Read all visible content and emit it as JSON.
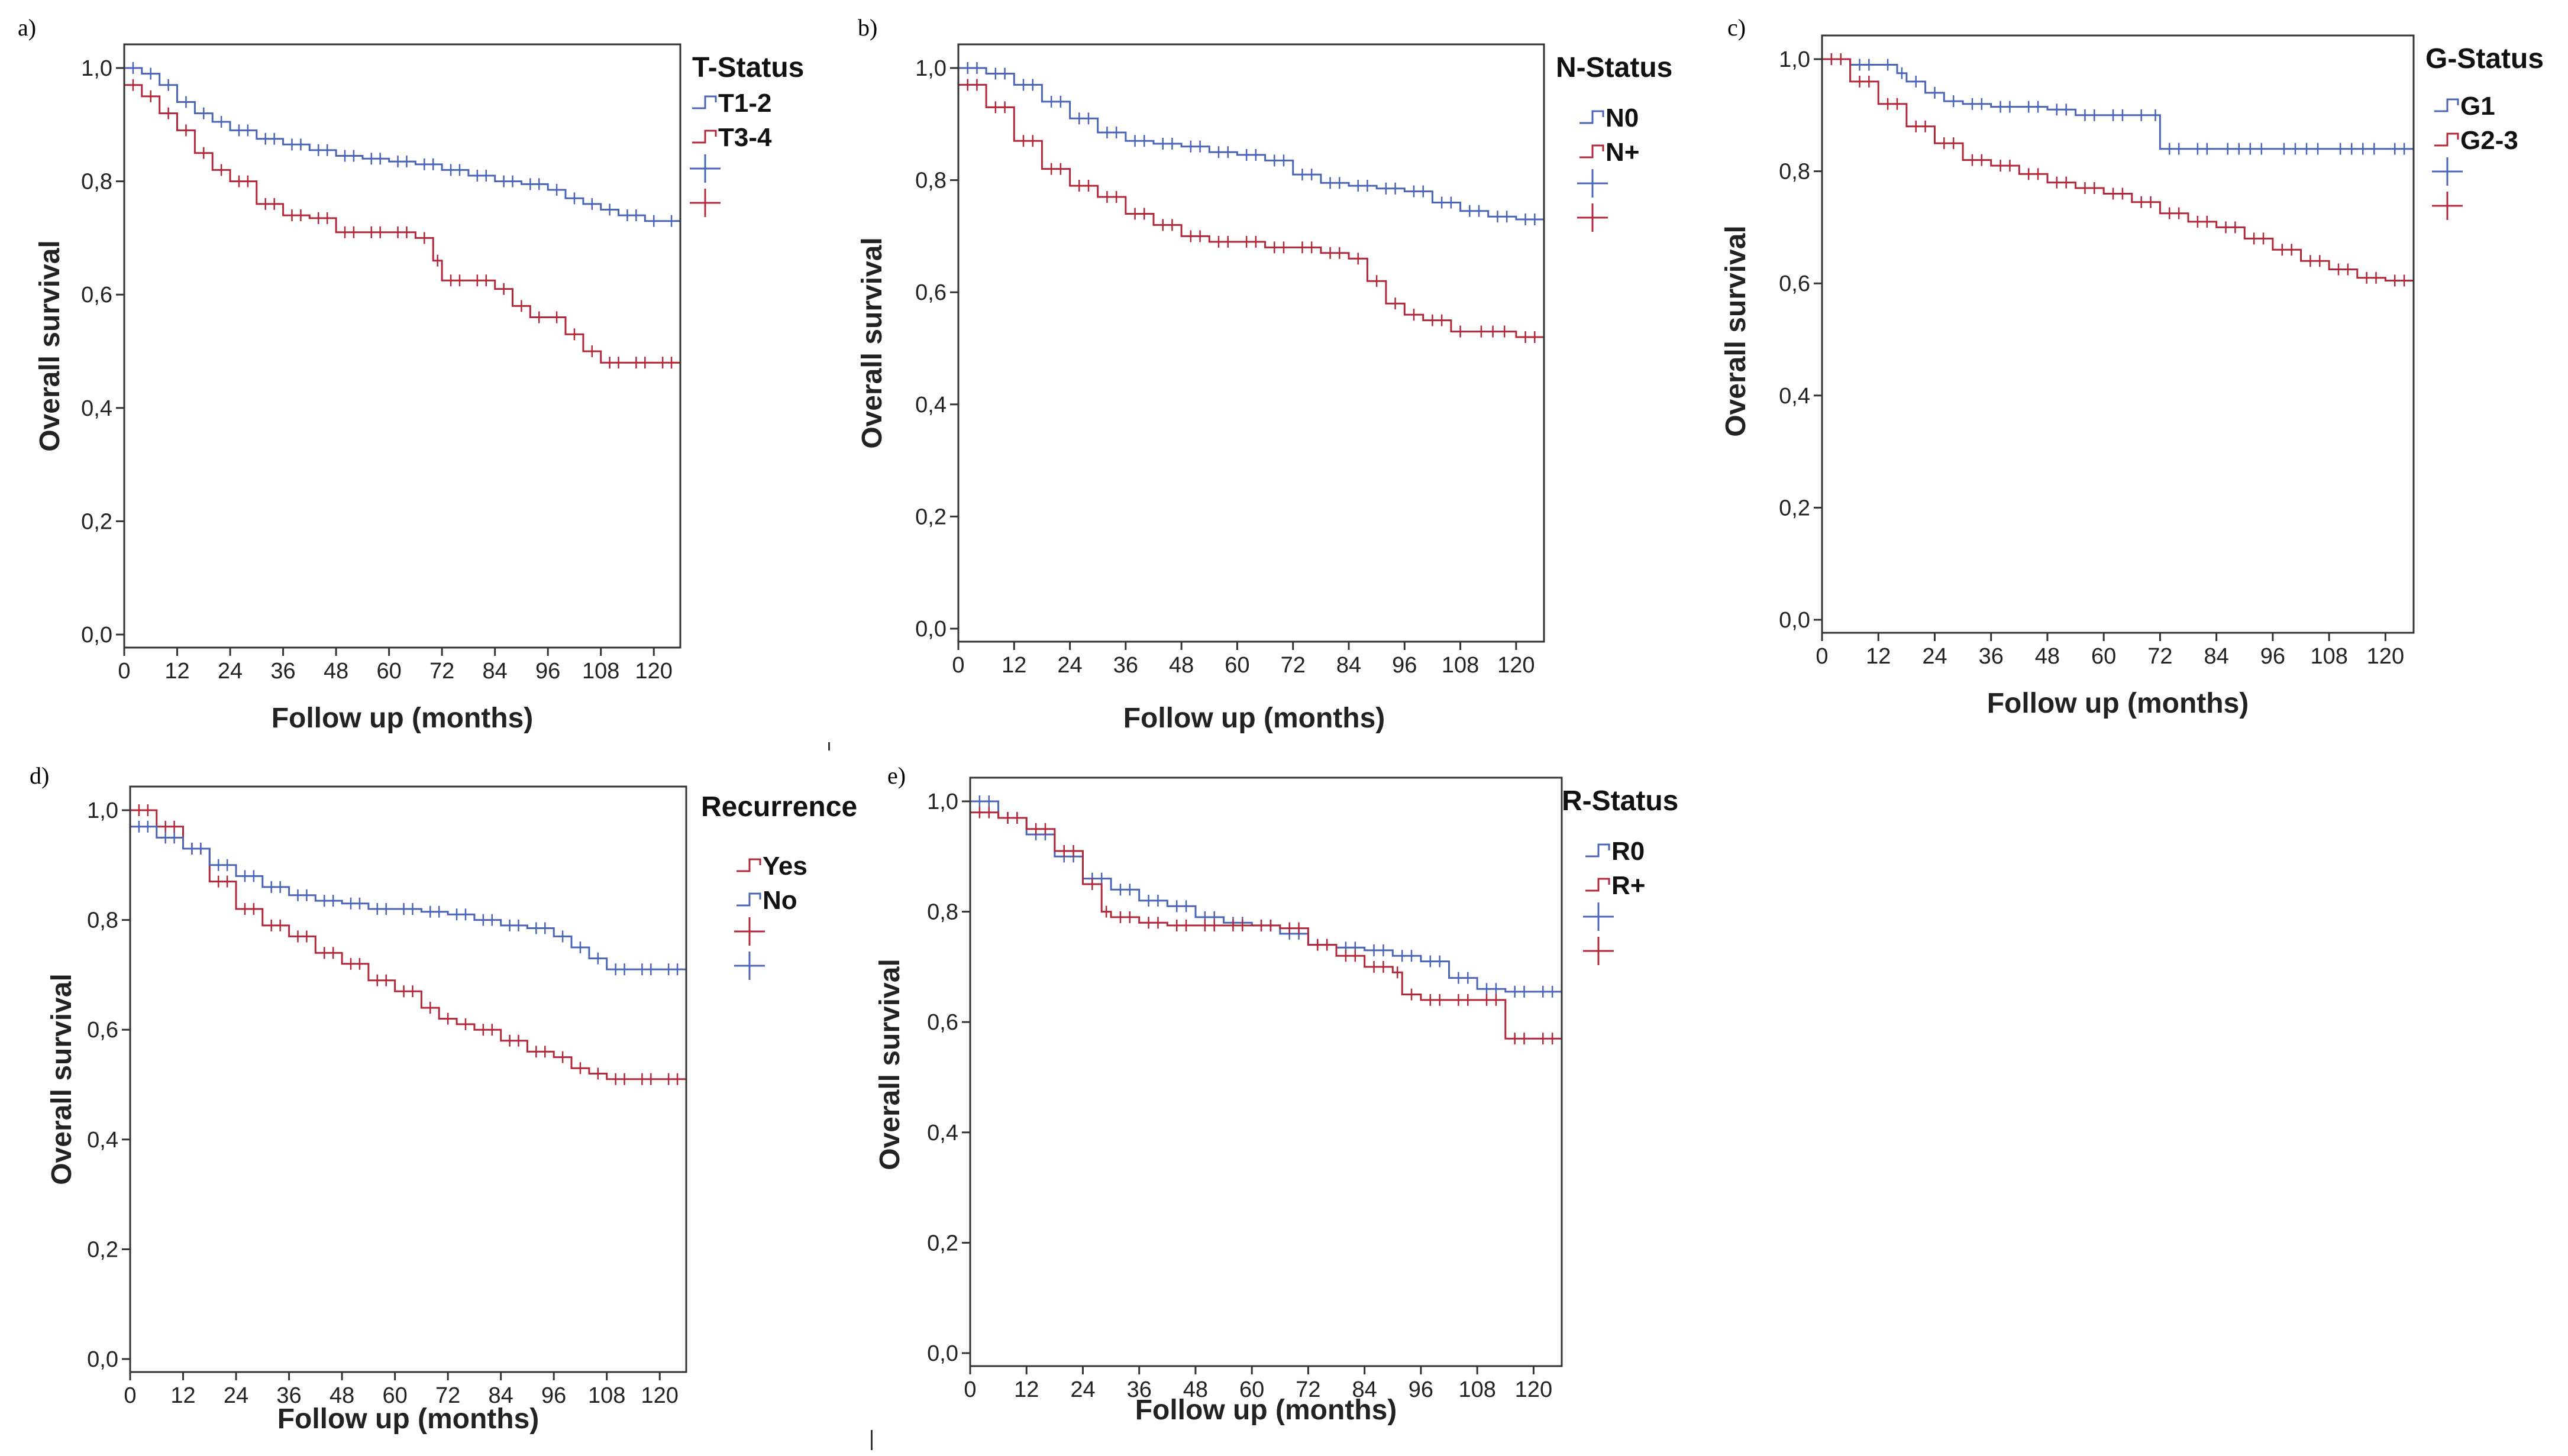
{
  "chart_data": [
    {
      "panel": "a)",
      "type": "line",
      "xlabel": "Follow up (months)",
      "ylabel": "Overall survival",
      "xticks": [
        "0",
        "12",
        "24",
        "36",
        "48",
        "60",
        "72",
        "84",
        "96",
        "108",
        "120"
      ],
      "yticks": [
        "0,0",
        "0,2",
        "0,4",
        "0,6",
        "0,8",
        "1,0"
      ],
      "xlim": [
        0,
        126
      ],
      "ylim": [
        0,
        1
      ],
      "legend_title": "T-Status",
      "series": [
        {
          "name": "T1-2",
          "color": "#4a64b8",
          "x": [
            0,
            4,
            8,
            12,
            16,
            20,
            24,
            30,
            36,
            42,
            48,
            54,
            60,
            66,
            72,
            78,
            84,
            90,
            96,
            100,
            104,
            108,
            112,
            118,
            122,
            126
          ],
          "y": [
            1.0,
            0.99,
            0.97,
            0.94,
            0.92,
            0.905,
            0.89,
            0.875,
            0.865,
            0.855,
            0.845,
            0.84,
            0.835,
            0.83,
            0.82,
            0.81,
            0.8,
            0.795,
            0.785,
            0.77,
            0.76,
            0.75,
            0.74,
            0.73,
            0.73,
            0.73
          ]
        },
        {
          "name": "T3-4",
          "color": "#b0283a",
          "x": [
            0,
            4,
            8,
            12,
            16,
            20,
            24,
            30,
            36,
            42,
            48,
            54,
            60,
            66,
            70,
            72,
            78,
            84,
            88,
            92,
            96,
            100,
            104,
            108,
            114,
            120,
            126
          ],
          "y": [
            0.97,
            0.95,
            0.92,
            0.89,
            0.85,
            0.82,
            0.8,
            0.76,
            0.74,
            0.735,
            0.71,
            0.71,
            0.71,
            0.7,
            0.66,
            0.625,
            0.625,
            0.61,
            0.58,
            0.56,
            0.56,
            0.53,
            0.5,
            0.48,
            0.48,
            0.48,
            0.48
          ]
        }
      ]
    },
    {
      "panel": "b)",
      "type": "line",
      "xlabel": "Follow up (months)",
      "ylabel": "Overall survival",
      "xticks": [
        "0",
        "12",
        "24",
        "36",
        "48",
        "60",
        "72",
        "84",
        "96",
        "108",
        "120"
      ],
      "yticks": [
        "0,0",
        "0,2",
        "0,4",
        "0,6",
        "0,8",
        "1,0"
      ],
      "xlim": [
        0,
        126
      ],
      "ylim": [
        0,
        1
      ],
      "legend_title": "N-Status",
      "series": [
        {
          "name": "N0",
          "color": "#4a64b8",
          "x": [
            0,
            6,
            12,
            18,
            24,
            30,
            36,
            42,
            48,
            54,
            60,
            66,
            72,
            78,
            84,
            90,
            96,
            102,
            108,
            114,
            120,
            126
          ],
          "y": [
            1.0,
            0.99,
            0.97,
            0.94,
            0.91,
            0.885,
            0.87,
            0.865,
            0.86,
            0.85,
            0.845,
            0.835,
            0.81,
            0.795,
            0.79,
            0.785,
            0.78,
            0.76,
            0.745,
            0.735,
            0.73,
            0.73
          ]
        },
        {
          "name": "N+",
          "color": "#b0283a",
          "x": [
            0,
            6,
            12,
            18,
            24,
            30,
            36,
            42,
            48,
            54,
            60,
            66,
            72,
            78,
            84,
            88,
            92,
            96,
            100,
            106,
            110,
            120,
            126
          ],
          "y": [
            0.97,
            0.93,
            0.87,
            0.82,
            0.79,
            0.77,
            0.74,
            0.72,
            0.7,
            0.69,
            0.69,
            0.68,
            0.68,
            0.67,
            0.66,
            0.62,
            0.58,
            0.56,
            0.55,
            0.53,
            0.53,
            0.52,
            0.52
          ]
        }
      ]
    },
    {
      "panel": "c)",
      "type": "line",
      "xlabel": "Follow up  (months)",
      "ylabel": "Overall survival",
      "xticks": [
        "0",
        "12",
        "24",
        "36",
        "48",
        "60",
        "72",
        "84",
        "96",
        "108",
        "120"
      ],
      "yticks": [
        "0,0",
        "0,2",
        "0,4",
        "0,6",
        "0,8",
        "1,0"
      ],
      "xlim": [
        0,
        126
      ],
      "ylim": [
        0,
        1
      ],
      "legend_title": "G-Status",
      "series": [
        {
          "name": "G1",
          "color": "#4a64b8",
          "x": [
            0,
            6,
            12,
            16,
            18,
            22,
            26,
            30,
            36,
            42,
            48,
            54,
            60,
            66,
            70,
            72,
            78,
            84,
            96,
            108,
            120,
            126
          ],
          "y": [
            1.0,
            0.99,
            0.99,
            0.975,
            0.96,
            0.94,
            0.925,
            0.92,
            0.915,
            0.915,
            0.91,
            0.9,
            0.9,
            0.9,
            0.9,
            0.84,
            0.84,
            0.84,
            0.84,
            0.84,
            0.84,
            0.84
          ]
        },
        {
          "name": "G2-3",
          "color": "#b0283a",
          "x": [
            0,
            6,
            12,
            18,
            24,
            30,
            36,
            42,
            48,
            54,
            60,
            66,
            72,
            78,
            84,
            90,
            96,
            102,
            108,
            114,
            120,
            126
          ],
          "y": [
            1.0,
            0.96,
            0.92,
            0.88,
            0.85,
            0.82,
            0.81,
            0.795,
            0.78,
            0.77,
            0.76,
            0.745,
            0.725,
            0.71,
            0.7,
            0.68,
            0.66,
            0.64,
            0.625,
            0.61,
            0.605,
            0.605
          ]
        }
      ]
    },
    {
      "panel": "d)",
      "type": "line",
      "xlabel": "Follow up (months)",
      "ylabel": "Overall survival",
      "xticks": [
        "0",
        "12",
        "24",
        "36",
        "48",
        "60",
        "72",
        "84",
        "96",
        "108",
        "120"
      ],
      "yticks": [
        "0,0",
        "0,2",
        "0,4",
        "0,6",
        "0,8",
        "1,0"
      ],
      "xlim": [
        0,
        126
      ],
      "ylim": [
        0,
        1
      ],
      "legend_title": "Recurrence",
      "series": [
        {
          "name": "Yes",
          "color": "#b0283a",
          "x": [
            0,
            6,
            12,
            18,
            24,
            30,
            36,
            42,
            48,
            54,
            60,
            66,
            70,
            74,
            78,
            84,
            90,
            96,
            100,
            104,
            108,
            114,
            120,
            126
          ],
          "y": [
            1.0,
            0.97,
            0.93,
            0.87,
            0.82,
            0.79,
            0.77,
            0.74,
            0.72,
            0.69,
            0.67,
            0.64,
            0.62,
            0.61,
            0.6,
            0.58,
            0.56,
            0.55,
            0.53,
            0.52,
            0.51,
            0.51,
            0.51,
            0.51
          ]
        },
        {
          "name": "No",
          "color": "#4a64b8",
          "x": [
            0,
            6,
            12,
            18,
            24,
            30,
            36,
            42,
            48,
            54,
            60,
            66,
            72,
            78,
            84,
            90,
            96,
            100,
            104,
            108,
            114,
            120,
            126
          ],
          "y": [
            0.97,
            0.95,
            0.93,
            0.9,
            0.88,
            0.86,
            0.845,
            0.835,
            0.83,
            0.82,
            0.82,
            0.815,
            0.81,
            0.8,
            0.79,
            0.785,
            0.77,
            0.75,
            0.73,
            0.71,
            0.71,
            0.71,
            0.71
          ]
        }
      ]
    },
    {
      "panel": "e)",
      "type": "line",
      "xlabel": "Follow up (months)",
      "ylabel": "Overall survival",
      "xticks": [
        "0",
        "12",
        "24",
        "36",
        "48",
        "60",
        "72",
        "84",
        "96",
        "108",
        "120"
      ],
      "yticks": [
        "0,0",
        "0,2",
        "0,4",
        "0,6",
        "0,8",
        "1,0"
      ],
      "xlim": [
        0,
        126
      ],
      "ylim": [
        0,
        1
      ],
      "legend_title": "R-Status",
      "series": [
        {
          "name": "R0",
          "color": "#4a64b8",
          "x": [
            0,
            6,
            12,
            18,
            24,
            30,
            36,
            42,
            48,
            54,
            60,
            66,
            72,
            78,
            84,
            90,
            96,
            102,
            108,
            114,
            120,
            126
          ],
          "y": [
            1.0,
            0.97,
            0.94,
            0.9,
            0.86,
            0.84,
            0.82,
            0.81,
            0.79,
            0.78,
            0.775,
            0.76,
            0.74,
            0.735,
            0.73,
            0.72,
            0.71,
            0.68,
            0.66,
            0.655,
            0.655,
            0.655
          ]
        },
        {
          "name": "R+",
          "color": "#b0283a",
          "x": [
            0,
            6,
            12,
            18,
            24,
            28,
            30,
            36,
            42,
            48,
            54,
            60,
            66,
            72,
            78,
            84,
            90,
            92,
            96,
            102,
            108,
            114,
            120,
            126
          ],
          "y": [
            0.98,
            0.97,
            0.95,
            0.91,
            0.85,
            0.8,
            0.79,
            0.78,
            0.775,
            0.775,
            0.775,
            0.775,
            0.77,
            0.74,
            0.72,
            0.7,
            0.69,
            0.65,
            0.64,
            0.64,
            0.64,
            0.57,
            0.57,
            0.57
          ]
        }
      ]
    }
  ]
}
